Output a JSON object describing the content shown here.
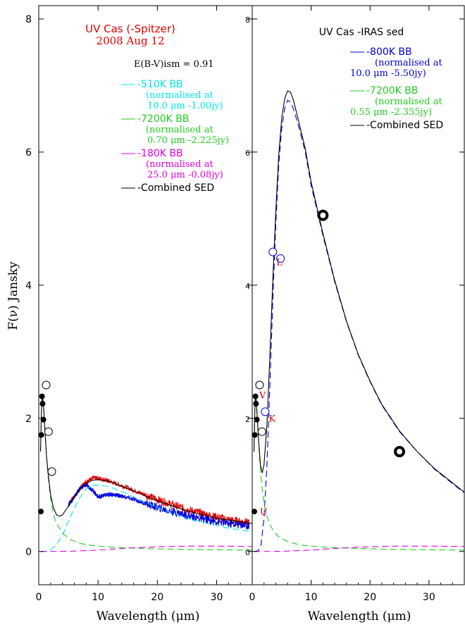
{
  "ylabel": "F(ν) Jansky",
  "chart_data": [
    {
      "type": "line",
      "title": "UV Cas (-Spitzer)",
      "subtitle": "2008 Aug 12",
      "xlabel": "Wavelength (μm)",
      "ylabel": "F(ν) Jansky",
      "xlim": [
        0,
        36
      ],
      "ylim": [
        -0.5,
        8.2
      ],
      "xticks": [
        0,
        10,
        20,
        30
      ],
      "yticks": [
        0,
        2,
        4,
        6,
        8
      ],
      "annotation": "E(B-V)ism = 0.91",
      "legend": [
        {
          "name": "-510K BB",
          "desc1": "(normalised at",
          "desc2": "10.0 μm -1.00jy)",
          "color": "#00e5ee",
          "dash": true
        },
        {
          "name": "-7200K BB",
          "desc1": "(normalised at",
          "desc2": "0.70 μm -2.225jy)",
          "color": "#22cc22",
          "dash": true
        },
        {
          "name": "-180K BB",
          "desc1": "(normalised at",
          "desc2": "25.0 μm -0.08jy)",
          "color": "#e000e0",
          "dash": true
        },
        {
          "name": "-Combined SED",
          "desc1": "",
          "desc2": "",
          "color": "#000000",
          "dash": false
        }
      ],
      "series": [
        {
          "name": "-510K BB",
          "color": "#00e5ee",
          "x": [
            0.3,
            1,
            2,
            3,
            4,
            5,
            6,
            7,
            8,
            9,
            10,
            12,
            14,
            16,
            18,
            20,
            22,
            25,
            28,
            31,
            34,
            36
          ],
          "y": [
            0,
            0.002,
            0.02,
            0.1,
            0.25,
            0.45,
            0.65,
            0.82,
            0.94,
            0.99,
            1.0,
            0.97,
            0.9,
            0.82,
            0.74,
            0.66,
            0.59,
            0.5,
            0.43,
            0.37,
            0.32,
            0.3
          ]
        },
        {
          "name": "-7200K BB",
          "color": "#22cc22",
          "x": [
            0.3,
            0.45,
            0.6,
            0.8,
            1.0,
            1.3,
            1.6,
            2.0,
            2.5,
            3,
            4,
            5,
            6,
            8,
            10,
            13,
            16,
            20,
            25,
            30,
            36
          ],
          "y": [
            1.5,
            2.1,
            2.35,
            2.2,
            1.9,
            1.45,
            1.1,
            0.8,
            0.55,
            0.42,
            0.28,
            0.2,
            0.15,
            0.1,
            0.08,
            0.06,
            0.05,
            0.04,
            0.03,
            0.025,
            0.02
          ]
        },
        {
          "name": "-180K BB",
          "color": "#e000e0",
          "x": [
            0.3,
            5,
            10,
            15,
            20,
            25,
            30,
            36
          ],
          "y": [
            0,
            0.003,
            0.02,
            0.05,
            0.07,
            0.08,
            0.08,
            0.075
          ]
        },
        {
          "name": "-Combined SED",
          "color": "#000000",
          "x": [
            0.3,
            0.45,
            0.6,
            0.8,
            1.0,
            1.3,
            1.6,
            2.0,
            2.5,
            3,
            3.5,
            4,
            5,
            6,
            7,
            8,
            9,
            10,
            12,
            14,
            16,
            18,
            20,
            25,
            30,
            36
          ],
          "y": [
            1.5,
            2.1,
            2.35,
            2.2,
            1.9,
            1.45,
            1.15,
            0.85,
            0.65,
            0.55,
            0.53,
            0.55,
            0.68,
            0.83,
            0.95,
            1.02,
            1.07,
            1.08,
            1.05,
            0.98,
            0.91,
            0.83,
            0.76,
            0.61,
            0.5,
            0.42
          ]
        }
      ],
      "spectra": [
        {
          "name": "red spectrum",
          "color": "#e00000",
          "x": [
            5,
            6,
            7,
            8,
            9,
            10,
            11,
            12,
            14,
            16,
            18,
            20,
            22,
            24,
            26,
            28,
            30,
            32,
            34,
            35.5
          ],
          "y": [
            0.72,
            0.82,
            0.95,
            1.05,
            1.1,
            1.1,
            1.08,
            1.05,
            0.99,
            0.92,
            0.85,
            0.78,
            0.72,
            0.66,
            0.61,
            0.56,
            0.52,
            0.48,
            0.45,
            0.43
          ]
        },
        {
          "name": "blue spectrum",
          "color": "#0000dd",
          "x": [
            5,
            6,
            7,
            8,
            9,
            10,
            11,
            12,
            13,
            14,
            16,
            18,
            20,
            22,
            24,
            26,
            28,
            30,
            32,
            34,
            35.5
          ],
          "y": [
            0.7,
            0.82,
            0.95,
            1.0,
            0.93,
            0.82,
            0.84,
            0.86,
            0.85,
            0.83,
            0.78,
            0.72,
            0.66,
            0.61,
            0.57,
            0.52,
            0.48,
            0.45,
            0.42,
            0.4,
            0.39
          ]
        }
      ],
      "photometry_filled": {
        "x": [
          0.36,
          0.44,
          0.55,
          0.64,
          0.79
        ],
        "y": [
          0.6,
          1.75,
          2.33,
          2.22,
          1.98
        ]
      },
      "photometry_open": {
        "x": [
          1.25,
          1.65,
          2.2
        ],
        "y": [
          2.5,
          1.8,
          1.2
        ]
      }
    },
    {
      "type": "line",
      "title": "UV Cas -IRAS sed",
      "xlabel": "Wavelength (μm)",
      "xlim": [
        0,
        36
      ],
      "ylim": [
        -0.5,
        8.2
      ],
      "xticks": [
        0,
        10,
        20,
        30
      ],
      "yticks": [
        0,
        2,
        4,
        6,
        8
      ],
      "legend": [
        {
          "name": "-800K BB",
          "desc1": "(normalised at",
          "desc2": "10.0 μm -5.50jy)",
          "color": "#0000dd",
          "dash": true
        },
        {
          "name": "-7200K BB",
          "desc1": "(normalised at",
          "desc2": "0.55 μm -2.355jy)",
          "color": "#22cc22",
          "dash": true
        },
        {
          "name": "-Combined SED",
          "desc1": "",
          "desc2": "",
          "color": "#000000",
          "dash": false
        }
      ],
      "series": [
        {
          "name": "-800K BB",
          "color": "#0000dd",
          "x": [
            0.3,
            1,
            1.5,
            2,
            2.5,
            3,
            3.5,
            4,
            4.5,
            5,
            5.5,
            6,
            6.5,
            7,
            7.5,
            8,
            9,
            10,
            12,
            14,
            16,
            18,
            20,
            22,
            25,
            28,
            31,
            34,
            36
          ],
          "y": [
            0,
            0.01,
            0.1,
            0.5,
            1.3,
            2.5,
            3.8,
            4.9,
            5.8,
            6.35,
            6.65,
            6.78,
            6.75,
            6.65,
            6.5,
            6.35,
            6.0,
            5.5,
            4.75,
            4.05,
            3.45,
            2.95,
            2.55,
            2.2,
            1.8,
            1.5,
            1.23,
            1.02,
            0.88
          ]
        },
        {
          "name": "-7200K BB",
          "color": "#22cc22",
          "x": [
            0.3,
            0.45,
            0.55,
            0.7,
            0.9,
            1.1,
            1.4,
            1.8,
            2.2,
            2.8,
            3.5,
            4.5,
            6,
            8,
            10,
            13,
            16,
            20,
            25,
            30,
            36
          ],
          "y": [
            1.5,
            2.15,
            2.35,
            2.25,
            1.95,
            1.6,
            1.2,
            0.85,
            0.62,
            0.45,
            0.32,
            0.22,
            0.15,
            0.1,
            0.08,
            0.06,
            0.05,
            0.04,
            0.03,
            0.025,
            0.02
          ]
        },
        {
          "name": "-180K BB",
          "color": "#e000e0",
          "x": [
            0.3,
            5,
            10,
            15,
            20,
            25,
            30,
            36
          ],
          "y": [
            0,
            0.003,
            0.02,
            0.05,
            0.07,
            0.08,
            0.08,
            0.075
          ]
        },
        {
          "name": "-Combined SED",
          "color": "#000000",
          "x": [
            0.3,
            0.45,
            0.55,
            0.7,
            0.9,
            1.1,
            1.4,
            1.7,
            2.0,
            2.5,
            3,
            3.5,
            4,
            4.5,
            5,
            5.5,
            6,
            6.5,
            7,
            7.5,
            8,
            9,
            10,
            12,
            14,
            16,
            18,
            20,
            22,
            25,
            28,
            31,
            34,
            36
          ],
          "y": [
            1.5,
            2.15,
            2.35,
            2.25,
            1.95,
            1.65,
            1.3,
            1.18,
            1.3,
            1.9,
            2.95,
            4.1,
            5.1,
            5.95,
            6.5,
            6.8,
            6.92,
            6.9,
            6.78,
            6.6,
            6.42,
            6.05,
            5.55,
            4.78,
            4.07,
            3.46,
            2.96,
            2.56,
            2.21,
            1.81,
            1.5,
            1.24,
            1.03,
            0.89
          ]
        }
      ],
      "photometry_filled": {
        "x": [
          0.36,
          0.44,
          0.55,
          0.64,
          0.79
        ],
        "y": [
          0.6,
          1.75,
          2.33,
          2.22,
          1.98
        ]
      },
      "photometry_open": {
        "x": [
          1.25,
          1.65,
          2.2,
          3.5,
          4.8
        ],
        "y": [
          2.5,
          1.8,
          2.1,
          4.5,
          4.4
        ]
      },
      "iras_points": {
        "x": [
          12,
          25
        ],
        "y": [
          5.05,
          1.5
        ]
      },
      "band_labels": [
        {
          "text": "V",
          "x": 1.2,
          "y": 2.3
        },
        {
          "text": "K",
          "x": 2.8,
          "y": 1.95
        },
        {
          "text": "L",
          "x": 4.1,
          "y": 4.3
        },
        {
          "text": "U",
          "x": 1.3,
          "y": 0.55
        }
      ]
    }
  ]
}
